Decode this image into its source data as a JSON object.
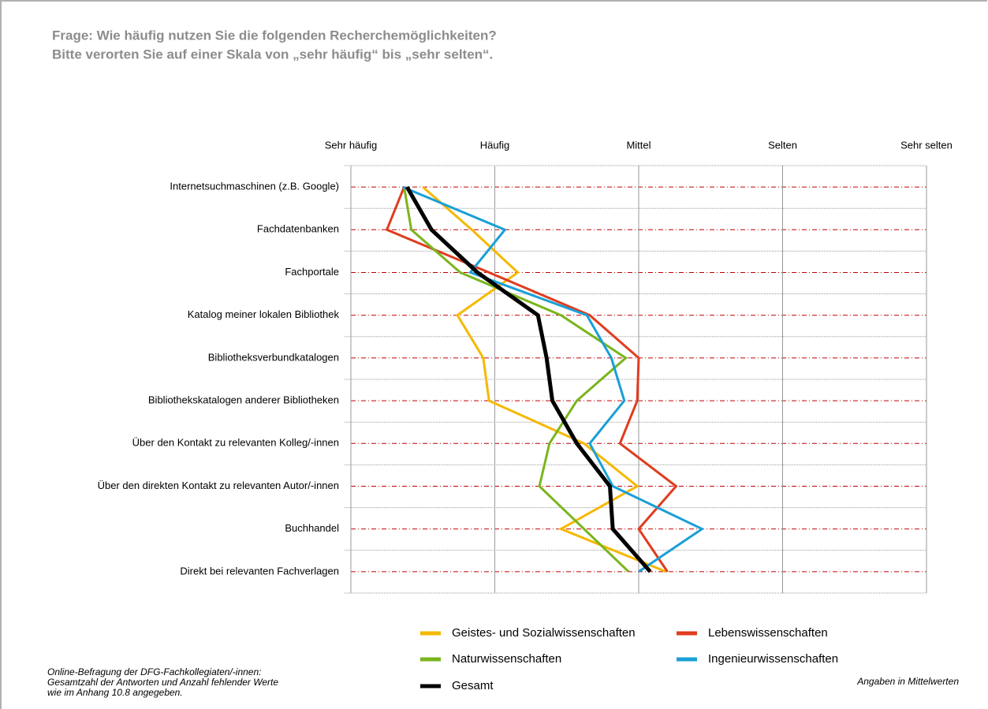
{
  "chart_data": {
    "type": "line",
    "orientation": "horizontal",
    "title": "Frage: Wie häufig nutzen Sie die folgenden Recherchemöglichkeiten?",
    "subtitle": "Bitte verorten Sie auf einer Skala von „sehr häufig“ bis „sehr selten“.",
    "categories": [
      "Internetsuchmaschinen (z.B. Google)",
      "Fachdatenbanken",
      "Fachportale",
      "Katalog meiner lokalen Bibliothek",
      "Bibliotheksverbundkatalogen",
      "Bibliothekskatalogen anderer Bibliotheken",
      "Über den Kontakt zu relevanten Kolleg/-innen",
      "Über den direkten Kontakt zu relevanten Autor/-innen",
      "Buchhandel",
      "Direkt bei relevanten Fachverlagen"
    ],
    "xlim": [
      1,
      5
    ],
    "xticks": [
      {
        "value": 1,
        "label": "Sehr häufig"
      },
      {
        "value": 2,
        "label": "Häufig"
      },
      {
        "value": 3,
        "label": "Mittel"
      },
      {
        "value": 4,
        "label": "Selten"
      },
      {
        "value": 5,
        "label": "Sehr selten"
      }
    ],
    "grid": true,
    "series": [
      {
        "name": "Geistes- und Sozialwissenschaften",
        "color": "#f5b800",
        "values": [
          1.5,
          1.84,
          2.16,
          1.74,
          1.92,
          1.96,
          2.62,
          2.99,
          2.46,
          3.19
        ]
      },
      {
        "name": "Lebenswissenschaften",
        "color": "#e03c1f",
        "values": [
          1.37,
          1.25,
          1.96,
          2.66,
          3.0,
          2.99,
          2.87,
          3.26,
          3.0,
          3.2
        ]
      },
      {
        "name": "Naturwissenschaften",
        "color": "#7ab51d",
        "values": [
          1.37,
          1.42,
          1.76,
          2.46,
          2.91,
          2.57,
          2.38,
          2.31,
          2.62,
          2.93
        ]
      },
      {
        "name": "Ingenieurwissenschaften",
        "color": "#1a9fd6",
        "values": [
          1.36,
          2.07,
          1.83,
          2.64,
          2.81,
          2.9,
          2.66,
          2.82,
          3.44,
          3.0
        ]
      },
      {
        "name": "Gesamt",
        "color": "#000000",
        "values": [
          1.39,
          1.56,
          1.88,
          2.3,
          2.36,
          2.4,
          2.57,
          2.8,
          2.82,
          3.08
        ]
      }
    ],
    "source": [
      "Online-Befragung der DFG-Fachkollegiaten/-innen:",
      "Gesamtzahl der Antworten und Anzahl fehlender Werte",
      "wie im Anhang 10.8 angegeben."
    ],
    "note": "Angaben in Mittelwerten"
  }
}
